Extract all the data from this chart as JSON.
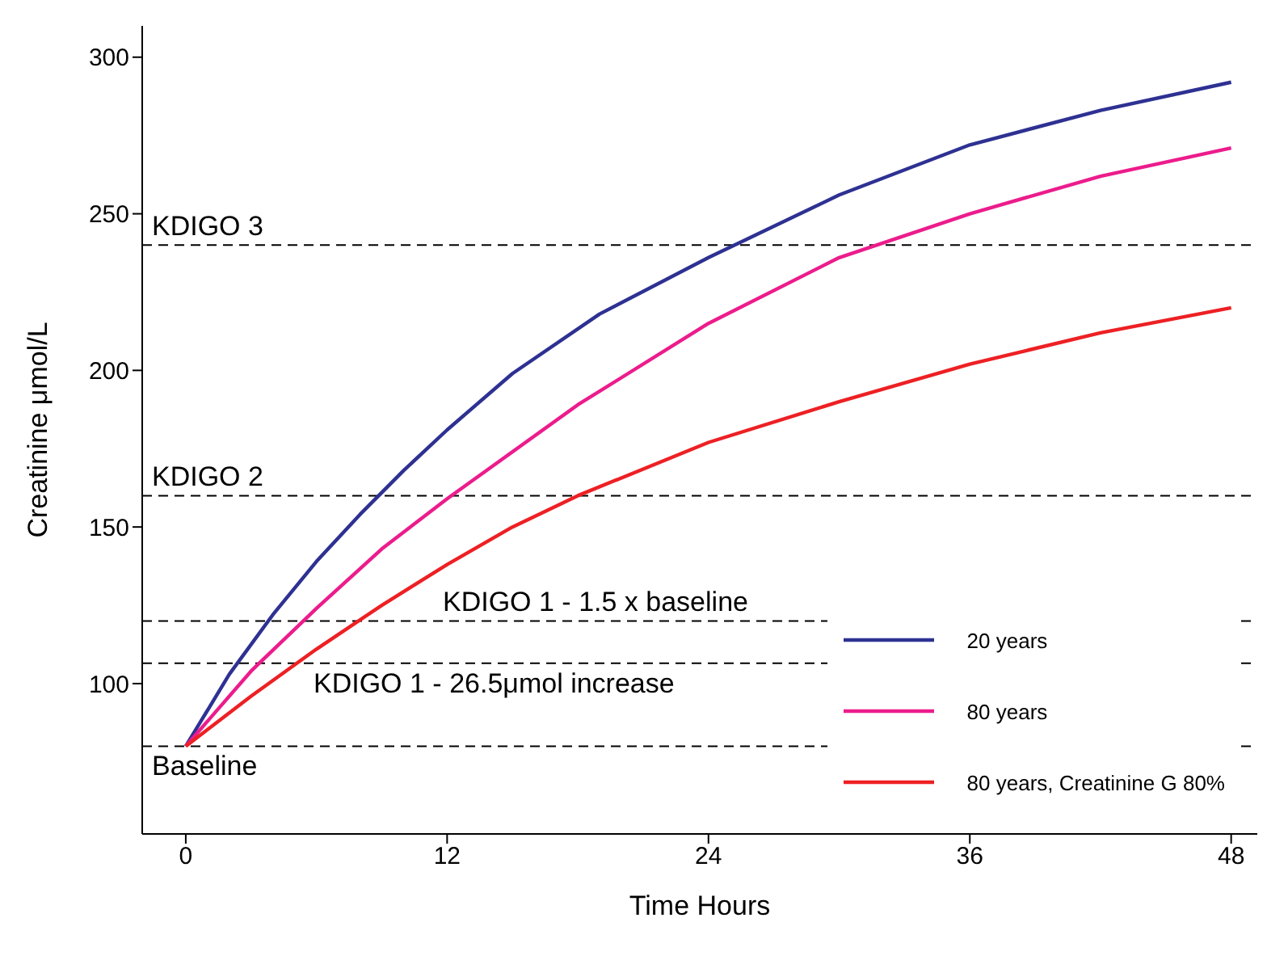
{
  "chart_data": {
    "type": "line",
    "xlabel": "Time Hours",
    "ylabel": "Creatinine μmol/L",
    "xlim": [
      -2,
      49.2
    ],
    "xticks": [
      0,
      12,
      24,
      36,
      48
    ],
    "ylim": [
      52,
      310
    ],
    "yticks": [
      100,
      150,
      200,
      250,
      300
    ],
    "grid": false,
    "legend": "right",
    "marker": "none",
    "line_style": "solid",
    "series": [
      {
        "name": "20 years",
        "color": "#2e3192",
        "x": [
          0,
          2,
          4,
          6,
          8,
          10,
          12,
          15,
          19,
          24,
          30,
          36,
          42,
          48
        ],
        "values": [
          80,
          103,
          122,
          139,
          154,
          168,
          181,
          199,
          218,
          236,
          256,
          272,
          283,
          292
        ]
      },
      {
        "name": "80 years",
        "color": "#ec1c8c",
        "x": [
          0,
          3,
          6,
          9,
          12,
          18,
          24,
          30,
          36,
          42,
          48
        ],
        "values": [
          80,
          104,
          124,
          143,
          159,
          189,
          215,
          236,
          250,
          262,
          271
        ]
      },
      {
        "name": "80 years, Creatinine G 80%",
        "color": "#ed2024",
        "x": [
          0,
          3,
          6,
          9,
          12,
          15,
          18,
          24,
          30,
          36,
          42,
          48
        ],
        "values": [
          80,
          96,
          111,
          125,
          138,
          150,
          160,
          177,
          190,
          202,
          212,
          220
        ]
      }
    ],
    "ref_lines": [
      {
        "axis": "y",
        "value": 240,
        "label": "KDIGO 3",
        "line_style": "dashed",
        "color": "#000000"
      },
      {
        "axis": "y",
        "value": 160,
        "label": "KDIGO 2",
        "line_style": "dashed",
        "color": "#000000"
      },
      {
        "axis": "y",
        "value": 120,
        "label": "KDIGO 1 - 1.5 x baseline",
        "line_style": "dashed",
        "color": "#000000"
      },
      {
        "axis": "y",
        "value": 106.5,
        "label": "KDIGO 1 - 26.5μmol increase",
        "line_style": "dashed",
        "color": "#000000"
      },
      {
        "axis": "y",
        "value": 80,
        "label": "Baseline",
        "line_style": "dashed",
        "color": "#000000"
      }
    ]
  }
}
